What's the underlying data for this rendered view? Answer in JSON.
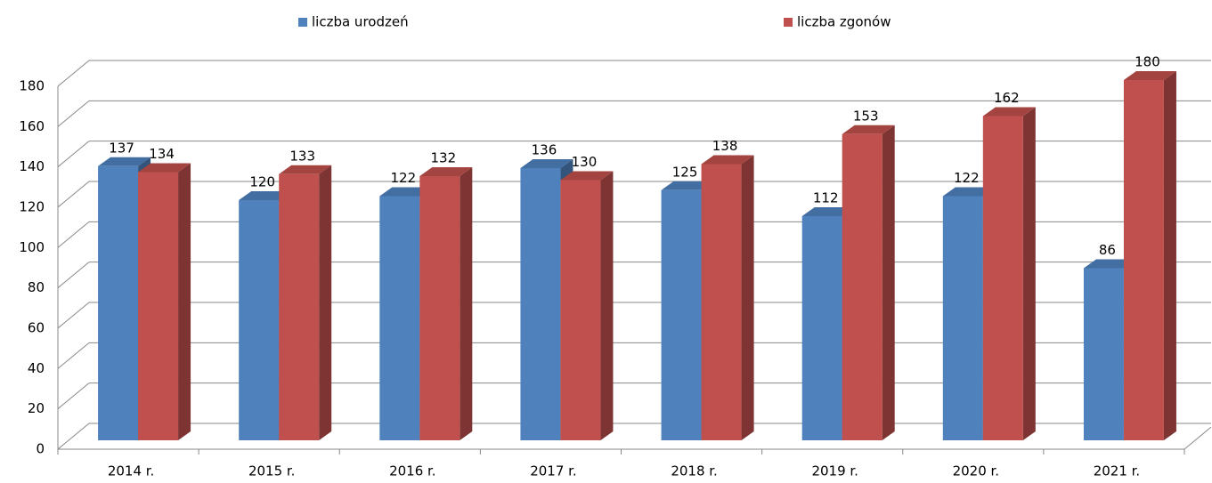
{
  "chart_data": {
    "type": "bar3d",
    "categories": [
      "2014 r.",
      "2015 r.",
      "2016 r.",
      "2017 r.",
      "2018 r.",
      "2019 r.",
      "2020 r.",
      "2021 r."
    ],
    "series": [
      {
        "name": "liczba urodzeń",
        "color": "#4f81bd",
        "values": [
          137,
          120,
          122,
          136,
          125,
          112,
          122,
          86
        ]
      },
      {
        "name": "liczba zgonów",
        "color": "#c0504d",
        "values": [
          134,
          133,
          132,
          130,
          138,
          153,
          162,
          180
        ]
      }
    ],
    "ylim": [
      0,
      180
    ],
    "yticks": [
      0,
      20,
      40,
      60,
      80,
      100,
      120,
      140,
      160,
      180
    ],
    "grid": true,
    "legend": "top"
  }
}
